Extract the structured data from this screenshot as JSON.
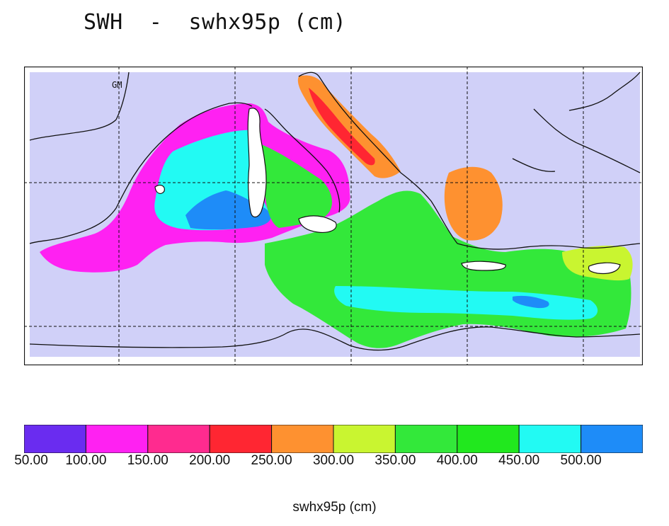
{
  "title": "SWH  -  swhx95p (cm)",
  "map_label": "GM",
  "colors": {
    "sea_background": "#d0d0f8",
    "land": "#ffffff",
    "coast": "#111111",
    "grid": "#111111"
  },
  "colorbar": {
    "colors": [
      "#6a2cf0",
      "#ff21f2",
      "#ff2b8f",
      "#ff2632",
      "#fe9130",
      "#c9f530",
      "#33e83a",
      "#21e81e",
      "#22faf3",
      "#1e8cf8"
    ],
    "tick_labels": [
      "50.00",
      "100.00",
      "150.00",
      "200.00",
      "250.00",
      "300.00",
      "350.00",
      "400.00",
      "450.00",
      "500.00"
    ],
    "unit_label": "swhx95p (cm)"
  }
}
